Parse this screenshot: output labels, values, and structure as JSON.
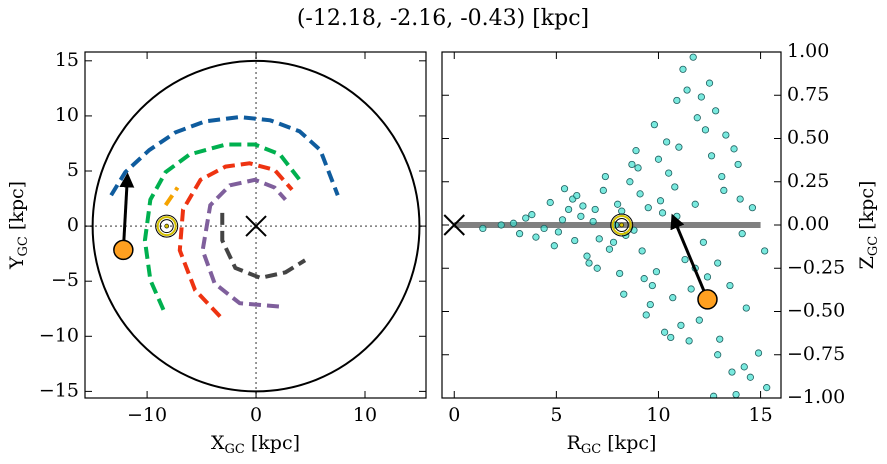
{
  "title": "(-12.18, -2.16, -0.43) [kpc]",
  "chart_data": [
    {
      "type": "line",
      "xlabel": [
        "X",
        "GC",
        " [kpc]"
      ],
      "ylabel": [
        "Y",
        "GC",
        " [kpc]"
      ],
      "xlim": [
        -15.7,
        15.6
      ],
      "ylim": [
        -15.6,
        15.8
      ],
      "xticks": [
        {
          "value": -10,
          "label": "−10"
        },
        0,
        10
      ],
      "yticks": [
        {
          "value": -15,
          "label": "−15"
        },
        {
          "value": -10,
          "label": "−10"
        },
        {
          "value": -5,
          "label": "−5"
        },
        0,
        5,
        10,
        15
      ],
      "ytick_side": "left",
      "zero_lines": true,
      "circle_radius": 15,
      "series": [
        {
          "color": "#0f5c9e",
          "x": [
            -13.3,
            -12.0,
            -9.8,
            -7.4,
            -4.7,
            -1.5,
            1.3,
            4.0,
            5.9,
            7.5
          ],
          "values": [
            2.8,
            4.9,
            6.9,
            8.5,
            9.5,
            9.9,
            9.6,
            8.6,
            6.9,
            2.8
          ]
        },
        {
          "color": "#00b04f",
          "x": [
            -8.5,
            -9.7,
            -10.2,
            -9.7,
            -8.3,
            -6.1,
            -2.8,
            -0.1,
            2.2,
            4.0
          ],
          "values": [
            -7.6,
            -4.9,
            -1.3,
            2.4,
            4.9,
            6.5,
            7.4,
            7.4,
            6.5,
            4.2
          ]
        },
        {
          "color": "#f5a300",
          "x": [
            -8.3,
            -7.2
          ],
          "values": [
            1.9,
            3.5
          ]
        },
        {
          "color": "#ee3311",
          "x": [
            -3.3,
            -5.6,
            -7.0,
            -6.7,
            -5.1,
            -2.8,
            -0.6,
            1.7,
            3.3
          ],
          "values": [
            -8.2,
            -5.8,
            -2.2,
            1.5,
            4.2,
            5.4,
            5.7,
            5.1,
            3.3
          ]
        },
        {
          "color": "#7f5f9c",
          "x": [
            2.1,
            -1.5,
            -3.8,
            -4.9,
            -4.2,
            -2.4,
            -0.1,
            1.7,
            2.7
          ],
          "values": [
            -7.3,
            -7.0,
            -5.2,
            -2.2,
            1.9,
            3.7,
            4.2,
            3.5,
            2.4
          ]
        },
        {
          "color": "#444444",
          "x": [
            -3.1,
            -3.1,
            -1.9,
            0.4,
            2.7,
            4.5
          ],
          "values": [
            1.2,
            -1.3,
            -3.8,
            -4.7,
            -4.2,
            -3.1
          ]
        }
      ],
      "center": {
        "x": 0,
        "y": 0
      },
      "sun": {
        "x": -8.2,
        "y": 0
      },
      "object": {
        "x": -12.18,
        "y": -2.16,
        "color": "#ffa020"
      },
      "arrow_tip": {
        "x": -11.8,
        "y": 4.6
      }
    },
    {
      "type": "scatter",
      "xlabel": [
        "R",
        "GC",
        " [kpc]"
      ],
      "ylabel": [
        "Z",
        "GC",
        " [kpc]"
      ],
      "xlim": [
        -0.6,
        16.0
      ],
      "ylim": [
        -1,
        1
      ],
      "xticks": [
        0,
        5,
        10,
        15
      ],
      "yticks": [
        {
          "value": -1,
          "label": "−1.00"
        },
        {
          "value": -0.75,
          "label": "−0.75"
        },
        {
          "value": -0.5,
          "label": "−0.50"
        },
        {
          "value": -0.25,
          "label": "−0.25"
        },
        {
          "value": 0,
          "label": "0.00"
        },
        {
          "value": 0.25,
          "label": "0.25"
        },
        {
          "value": 0.5,
          "label": "0.50"
        },
        {
          "value": 0.75,
          "label": "0.75"
        },
        {
          "value": 1,
          "label": "1.00"
        }
      ],
      "ytick_side": "right",
      "color": "#40e0d0",
      "x": [
        6.2,
        7.1,
        8.0,
        8.8,
        9.5,
        7.6,
        6.8,
        8.4,
        9.1,
        7.9,
        5.1,
        5.6,
        4.4,
        3.8,
        3.2,
        2.9,
        4.9,
        5.8,
        6.5,
        10.2,
        10.8,
        11.3,
        9.9,
        10.5,
        8.6,
        7.3,
        6.0,
        9.3,
        11.8,
        12.2,
        12.6,
        13.1,
        13.5,
        14.0,
        12.9,
        11.0,
        10.0,
        9.0,
        8.1,
        7.0,
        6.6,
        5.4,
        4.7,
        10.7,
        11.6,
        12.3,
        13.3,
        11.9,
        10.4,
        9.6,
        8.9,
        9.8,
        10.9,
        11.4,
        12.0,
        12.8,
        13.7,
        14.3,
        12.5,
        11.2,
        11.7,
        12.1,
        9.4,
        8.3,
        10.3,
        11.1,
        13.0,
        13.9,
        14.6,
        15.2,
        12.9,
        13.6,
        14.2,
        14.9,
        15.3,
        13.8,
        14.5,
        12.7,
        11.5,
        10.6,
        2.3,
        1.4,
        3.5,
        4.0,
        5.3,
        6.3,
        7.4,
        8.7,
        9.7,
        10.1,
        7.8,
        8.2,
        6.9,
        9.2,
        5.9,
        10.9,
        11.8,
        12.4,
        13.2,
        14.1
      ],
      "values": [
        0.05,
        -0.08,
        0.12,
        -0.03,
        0.1,
        -0.14,
        0.02,
        -0.06,
        0.18,
        0.0,
        -0.04,
        0.09,
        -0.02,
        0.06,
        -0.05,
        0.01,
        -0.12,
        0.15,
        -0.18,
        0.07,
        0.22,
        -0.2,
        -0.27,
        0.3,
        0.25,
        0.2,
        0.17,
        -0.31,
        0.12,
        -0.1,
        0.4,
        0.28,
        -0.35,
        0.15,
        -0.22,
        0.45,
        0.38,
        0.33,
        -0.28,
        -0.25,
        -0.22,
        0.21,
        0.13,
        -0.42,
        -0.37,
        0.55,
        0.52,
        0.62,
        0.48,
        -0.46,
        0.43,
        0.58,
        0.72,
        0.78,
        -0.55,
        0.66,
        0.44,
        -0.48,
        0.82,
        0.9,
        0.97,
        0.74,
        -0.52,
        -0.4,
        -0.62,
        -0.58,
        -0.66,
        0.35,
        0.1,
        -0.15,
        -0.75,
        -0.85,
        -0.82,
        -0.74,
        -0.94,
        -0.98,
        -0.88,
        -0.99,
        -0.67,
        -0.65,
        0.0,
        -0.02,
        0.04,
        -0.07,
        0.03,
        0.11,
        0.28,
        0.35,
        -0.35,
        0.14,
        -0.1,
        0.08,
        0.09,
        -0.15,
        -0.09,
        0.05,
        -0.25,
        -0.3,
        0.2,
        -0.05
      ],
      "plane": {
        "x": [
          0,
          15
        ],
        "y": [
          0,
          0
        ],
        "color": "#808080"
      },
      "center": {
        "x": 0,
        "y": 0
      },
      "sun": {
        "x": 8.2,
        "y": 0
      },
      "object": {
        "x": 12.4,
        "y": -0.43,
        "color": "#ffa020"
      },
      "arrow_tip": {
        "x": 10.7,
        "y": 0.05
      }
    }
  ]
}
